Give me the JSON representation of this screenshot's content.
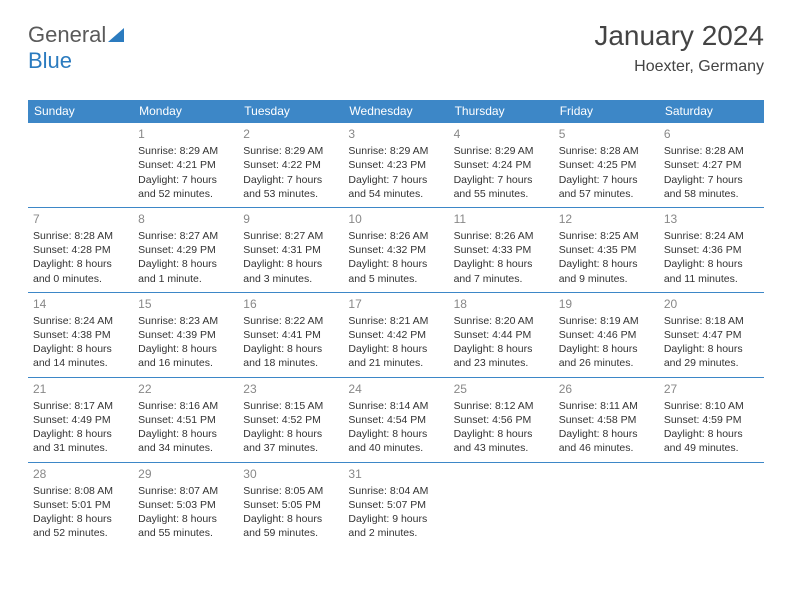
{
  "logo": {
    "part1": "General",
    "part2": "Blue"
  },
  "title": "January 2024",
  "location": "Hoexter, Germany",
  "colors": {
    "header_bg": "#3d87c7",
    "header_fg": "#ffffff",
    "cell_border": "#3d87c7",
    "daynum": "#888888",
    "text": "#333333",
    "logo_gray": "#5a5a5a",
    "logo_blue": "#2b7bbf"
  },
  "day_labels": [
    "Sunday",
    "Monday",
    "Tuesday",
    "Wednesday",
    "Thursday",
    "Friday",
    "Saturday"
  ],
  "weeks": [
    [
      null,
      {
        "n": "1",
        "sr": "Sunrise: 8:29 AM",
        "ss": "Sunset: 4:21 PM",
        "dl": "Daylight: 7 hours and 52 minutes."
      },
      {
        "n": "2",
        "sr": "Sunrise: 8:29 AM",
        "ss": "Sunset: 4:22 PM",
        "dl": "Daylight: 7 hours and 53 minutes."
      },
      {
        "n": "3",
        "sr": "Sunrise: 8:29 AM",
        "ss": "Sunset: 4:23 PM",
        "dl": "Daylight: 7 hours and 54 minutes."
      },
      {
        "n": "4",
        "sr": "Sunrise: 8:29 AM",
        "ss": "Sunset: 4:24 PM",
        "dl": "Daylight: 7 hours and 55 minutes."
      },
      {
        "n": "5",
        "sr": "Sunrise: 8:28 AM",
        "ss": "Sunset: 4:25 PM",
        "dl": "Daylight: 7 hours and 57 minutes."
      },
      {
        "n": "6",
        "sr": "Sunrise: 8:28 AM",
        "ss": "Sunset: 4:27 PM",
        "dl": "Daylight: 7 hours and 58 minutes."
      }
    ],
    [
      {
        "n": "7",
        "sr": "Sunrise: 8:28 AM",
        "ss": "Sunset: 4:28 PM",
        "dl": "Daylight: 8 hours and 0 minutes."
      },
      {
        "n": "8",
        "sr": "Sunrise: 8:27 AM",
        "ss": "Sunset: 4:29 PM",
        "dl": "Daylight: 8 hours and 1 minute."
      },
      {
        "n": "9",
        "sr": "Sunrise: 8:27 AM",
        "ss": "Sunset: 4:31 PM",
        "dl": "Daylight: 8 hours and 3 minutes."
      },
      {
        "n": "10",
        "sr": "Sunrise: 8:26 AM",
        "ss": "Sunset: 4:32 PM",
        "dl": "Daylight: 8 hours and 5 minutes."
      },
      {
        "n": "11",
        "sr": "Sunrise: 8:26 AM",
        "ss": "Sunset: 4:33 PM",
        "dl": "Daylight: 8 hours and 7 minutes."
      },
      {
        "n": "12",
        "sr": "Sunrise: 8:25 AM",
        "ss": "Sunset: 4:35 PM",
        "dl": "Daylight: 8 hours and 9 minutes."
      },
      {
        "n": "13",
        "sr": "Sunrise: 8:24 AM",
        "ss": "Sunset: 4:36 PM",
        "dl": "Daylight: 8 hours and 11 minutes."
      }
    ],
    [
      {
        "n": "14",
        "sr": "Sunrise: 8:24 AM",
        "ss": "Sunset: 4:38 PM",
        "dl": "Daylight: 8 hours and 14 minutes."
      },
      {
        "n": "15",
        "sr": "Sunrise: 8:23 AM",
        "ss": "Sunset: 4:39 PM",
        "dl": "Daylight: 8 hours and 16 minutes."
      },
      {
        "n": "16",
        "sr": "Sunrise: 8:22 AM",
        "ss": "Sunset: 4:41 PM",
        "dl": "Daylight: 8 hours and 18 minutes."
      },
      {
        "n": "17",
        "sr": "Sunrise: 8:21 AM",
        "ss": "Sunset: 4:42 PM",
        "dl": "Daylight: 8 hours and 21 minutes."
      },
      {
        "n": "18",
        "sr": "Sunrise: 8:20 AM",
        "ss": "Sunset: 4:44 PM",
        "dl": "Daylight: 8 hours and 23 minutes."
      },
      {
        "n": "19",
        "sr": "Sunrise: 8:19 AM",
        "ss": "Sunset: 4:46 PM",
        "dl": "Daylight: 8 hours and 26 minutes."
      },
      {
        "n": "20",
        "sr": "Sunrise: 8:18 AM",
        "ss": "Sunset: 4:47 PM",
        "dl": "Daylight: 8 hours and 29 minutes."
      }
    ],
    [
      {
        "n": "21",
        "sr": "Sunrise: 8:17 AM",
        "ss": "Sunset: 4:49 PM",
        "dl": "Daylight: 8 hours and 31 minutes."
      },
      {
        "n": "22",
        "sr": "Sunrise: 8:16 AM",
        "ss": "Sunset: 4:51 PM",
        "dl": "Daylight: 8 hours and 34 minutes."
      },
      {
        "n": "23",
        "sr": "Sunrise: 8:15 AM",
        "ss": "Sunset: 4:52 PM",
        "dl": "Daylight: 8 hours and 37 minutes."
      },
      {
        "n": "24",
        "sr": "Sunrise: 8:14 AM",
        "ss": "Sunset: 4:54 PM",
        "dl": "Daylight: 8 hours and 40 minutes."
      },
      {
        "n": "25",
        "sr": "Sunrise: 8:12 AM",
        "ss": "Sunset: 4:56 PM",
        "dl": "Daylight: 8 hours and 43 minutes."
      },
      {
        "n": "26",
        "sr": "Sunrise: 8:11 AM",
        "ss": "Sunset: 4:58 PM",
        "dl": "Daylight: 8 hours and 46 minutes."
      },
      {
        "n": "27",
        "sr": "Sunrise: 8:10 AM",
        "ss": "Sunset: 4:59 PM",
        "dl": "Daylight: 8 hours and 49 minutes."
      }
    ],
    [
      {
        "n": "28",
        "sr": "Sunrise: 8:08 AM",
        "ss": "Sunset: 5:01 PM",
        "dl": "Daylight: 8 hours and 52 minutes."
      },
      {
        "n": "29",
        "sr": "Sunrise: 8:07 AM",
        "ss": "Sunset: 5:03 PM",
        "dl": "Daylight: 8 hours and 55 minutes."
      },
      {
        "n": "30",
        "sr": "Sunrise: 8:05 AM",
        "ss": "Sunset: 5:05 PM",
        "dl": "Daylight: 8 hours and 59 minutes."
      },
      {
        "n": "31",
        "sr": "Sunrise: 8:04 AM",
        "ss": "Sunset: 5:07 PM",
        "dl": "Daylight: 9 hours and 2 minutes."
      },
      null,
      null,
      null
    ]
  ]
}
